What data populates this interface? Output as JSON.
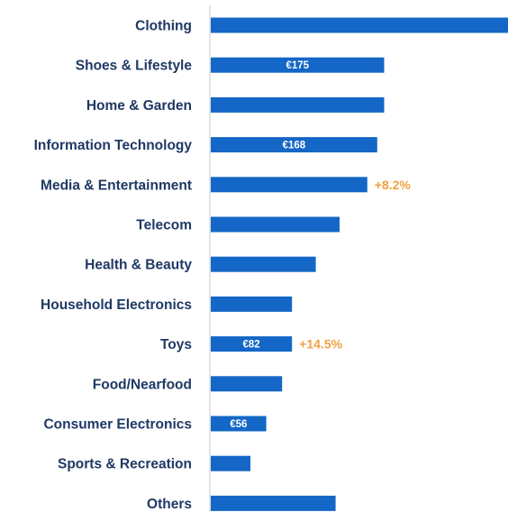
{
  "chart_data": {
    "type": "bar",
    "orientation": "horizontal",
    "title": "",
    "xlabel": "",
    "ylabel": "",
    "currency": "€",
    "categories": [
      "Clothing",
      "Shoes & Lifestyle",
      "Home & Garden",
      "Information Technology",
      "Media & Entertainment",
      "Telecom",
      "Health & Beauty",
      "Household Electronics",
      "Toys",
      "Food/Nearfood",
      "Consumer Electronics",
      "Sports & Recreation",
      "Others"
    ],
    "values": [
      300,
      175,
      175,
      168,
      158,
      130,
      106,
      82,
      82,
      72,
      56,
      40,
      126
    ],
    "data_labels": [
      "",
      "€175",
      "",
      "€168",
      "",
      "",
      "",
      "",
      "€82",
      "",
      "€56",
      "",
      ""
    ],
    "growth_labels": [
      "",
      "",
      "",
      "",
      "+8.2%",
      "",
      "",
      "",
      "+14.5%",
      "",
      "",
      "",
      ""
    ],
    "xlim": [
      0,
      300
    ],
    "grid": false,
    "colors": {
      "bar": "#1467c6",
      "category_text": "#1f3864",
      "value_text": "#ffffff",
      "growth_text": "#f0a040"
    }
  }
}
